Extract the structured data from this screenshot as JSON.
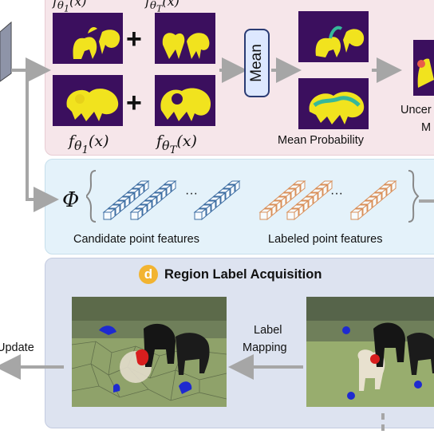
{
  "top_panel": {
    "f_theta_1": "f",
    "f_theta_1_sub": "θ",
    "f_theta_1_subsub": "1",
    "f_theta_t_sub": "θ",
    "f_theta_t_subsub": "T",
    "x_expr": "(x)",
    "plus": "+",
    "mean_label": "Mean",
    "mean_probability_label": "Mean  Probability",
    "uncertainty_label_partial": "Uncer",
    "uncertainty_label_partial_2": "M"
  },
  "mid_panel": {
    "phi_symbol": "Φ",
    "ellipsis": "···",
    "candidate_label": "Candidate point features",
    "labeled_label": "Labeled point features"
  },
  "bottom_panel": {
    "badge_letter": "d",
    "title": "Region Label Acquisition",
    "label_mapping_line1": "Label",
    "label_mapping_line2": "Mapping",
    "update_label": "Update"
  },
  "colors": {
    "top_panel_bg": "#f6e6ea",
    "mid_panel_bg": "#e4f2fa",
    "bottom_panel_bg": "#dde3f0",
    "badge": "#f2b431",
    "candidate_cubes": "#3f6fa3",
    "labeled_cubes": "#d9905a",
    "heatmap_bg": "#3b0f5e",
    "heatmap_fg": "#f1e31e",
    "arrow_gray": "#a6a6a6"
  }
}
